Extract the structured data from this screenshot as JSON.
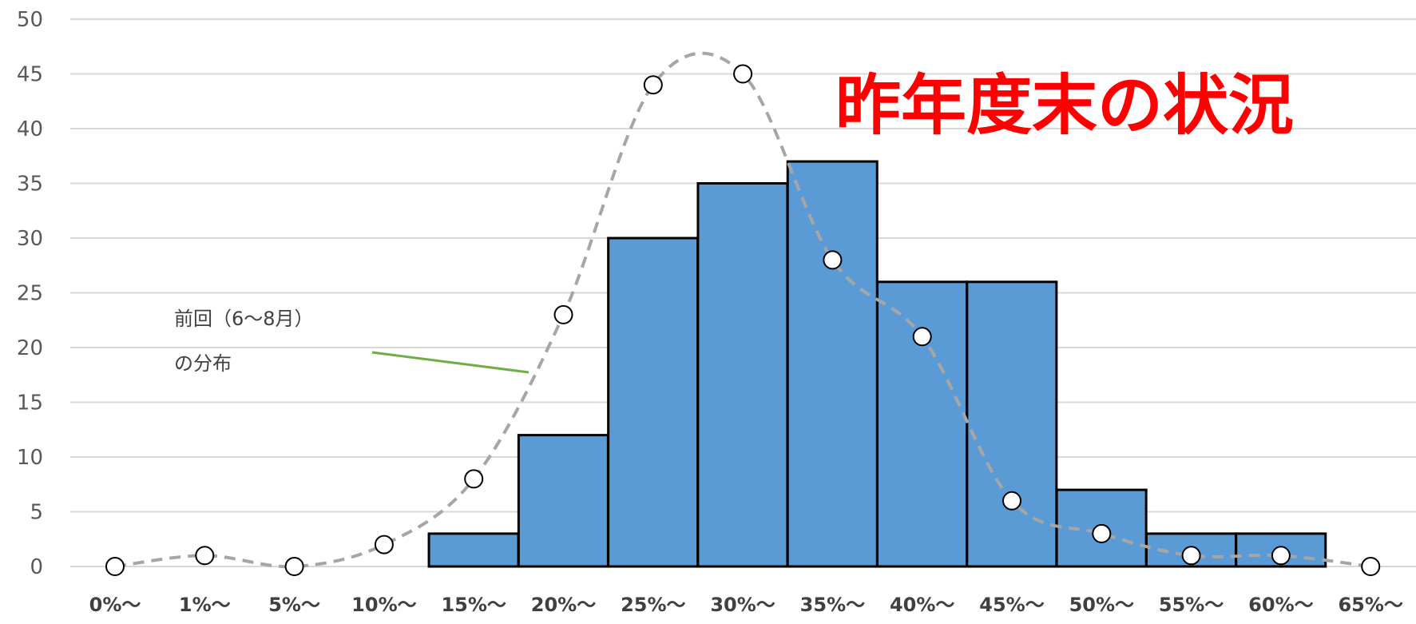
{
  "chart_data": {
    "type": "bar",
    "title": "昨年度末の状況",
    "categories": [
      "0%〜",
      "1%〜",
      "5%〜",
      "10%〜",
      "15%〜",
      "20%〜",
      "25%〜",
      "30%〜",
      "35%〜",
      "40%〜",
      "45%〜",
      "50%〜",
      "55%〜",
      "60%〜",
      "65%〜"
    ],
    "ylim": [
      0,
      50
    ],
    "yticks": [
      0,
      5,
      10,
      15,
      20,
      25,
      30,
      35,
      40,
      45,
      50
    ],
    "grid": true,
    "series": [
      {
        "type": "bar",
        "values": [
          0,
          0,
          0,
          0,
          3,
          12,
          30,
          35,
          37,
          26,
          26,
          7,
          3,
          3,
          0
        ],
        "color": "#5b9bd5"
      },
      {
        "type": "line",
        "style": "dashed",
        "marker": "circle",
        "values": [
          0,
          1,
          0,
          2,
          8,
          23,
          44,
          45,
          28,
          21,
          6,
          3,
          1,
          1,
          0
        ],
        "color": "#a6a6a6"
      }
    ],
    "annotations": {
      "previous_line1": "前回（6〜8月）",
      "previous_line2": "の分布"
    }
  }
}
